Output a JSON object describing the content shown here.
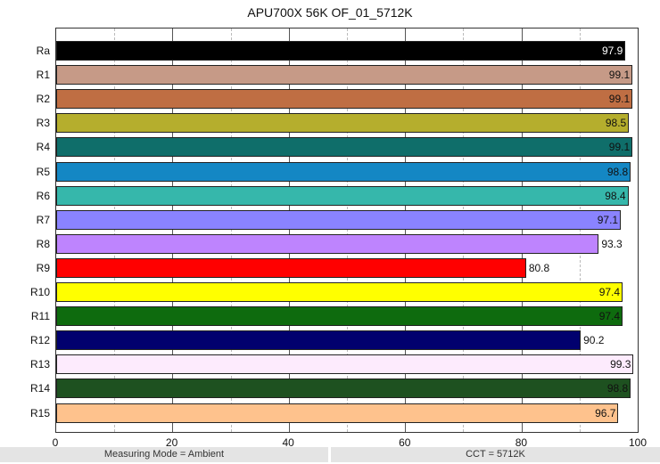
{
  "chart_data": {
    "type": "bar",
    "orientation": "horizontal",
    "title": "APU700X 56K OF_01_5712K",
    "xlabel": "",
    "ylabel": "",
    "xlim": [
      0,
      100
    ],
    "xticks": [
      0,
      20,
      40,
      60,
      80,
      100
    ],
    "grid": true,
    "categories": [
      "Ra",
      "R1",
      "R2",
      "R3",
      "R4",
      "R5",
      "R6",
      "R7",
      "R8",
      "R9",
      "R10",
      "R11",
      "R12",
      "R13",
      "R14",
      "R15"
    ],
    "values": [
      97.9,
      99.1,
      99.1,
      98.5,
      99.1,
      98.8,
      98.4,
      97.1,
      93.3,
      80.8,
      97.4,
      97.4,
      90.2,
      99.3,
      98.8,
      96.7
    ],
    "colors": [
      "#000000",
      "#c69a87",
      "#bf6e43",
      "#b5ae2d",
      "#0f6e6a",
      "#1487c4",
      "#36b7ab",
      "#8a83ff",
      "#be84fe",
      "#ff0000",
      "#ffff00",
      "#0e6b0e",
      "#01006e",
      "#fdebfd",
      "#1e5120",
      "#fec28d"
    ],
    "label_colors": [
      "#ffffff",
      "#111111",
      "#111111",
      "#111111",
      "#111111",
      "#111111",
      "#111111",
      "#111111",
      "#111111",
      "#111111",
      "#111111",
      "#111111",
      "#111111",
      "#111111",
      "#111111",
      "#111111"
    ]
  },
  "footer": {
    "left": "Measuring Mode = Ambient",
    "right": "CCT = 5712K"
  }
}
